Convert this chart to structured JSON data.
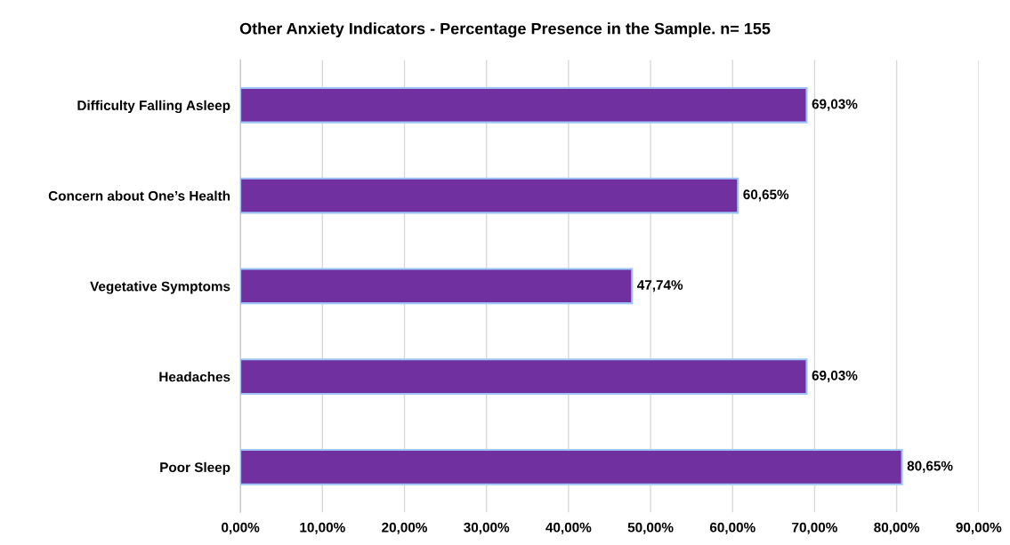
{
  "chart_data": {
    "type": "bar",
    "orientation": "horizontal",
    "title": "Other Anxiety Indicators - Percentage Presence in the Sample. n= 155",
    "categories": [
      "Difficulty Falling Asleep",
      "Concern about One’s Health",
      "Vegetative Symptoms",
      "Headaches",
      "Poor Sleep"
    ],
    "values": [
      69.03,
      60.65,
      47.74,
      69.03,
      80.65
    ],
    "value_labels": [
      "69,03%",
      "60,65%",
      "47,74%",
      "69,03%",
      "80,65%"
    ],
    "color": "#7030a0",
    "xlim": [
      0,
      90
    ],
    "xticks": [
      {
        "value": 0,
        "label": "0,00%"
      },
      {
        "value": 10,
        "label": "10,00%"
      },
      {
        "value": 20,
        "label": "20,00%"
      },
      {
        "value": 30,
        "label": "30,00%"
      },
      {
        "value": 40,
        "label": "40,00%"
      },
      {
        "value": 50,
        "label": "50,00%"
      },
      {
        "value": 60,
        "label": "60,00%"
      },
      {
        "value": 70,
        "label": "70,00%"
      },
      {
        "value": 80,
        "label": "80,00%"
      },
      {
        "value": 90,
        "label": "90,00%"
      }
    ],
    "grid": "x"
  }
}
